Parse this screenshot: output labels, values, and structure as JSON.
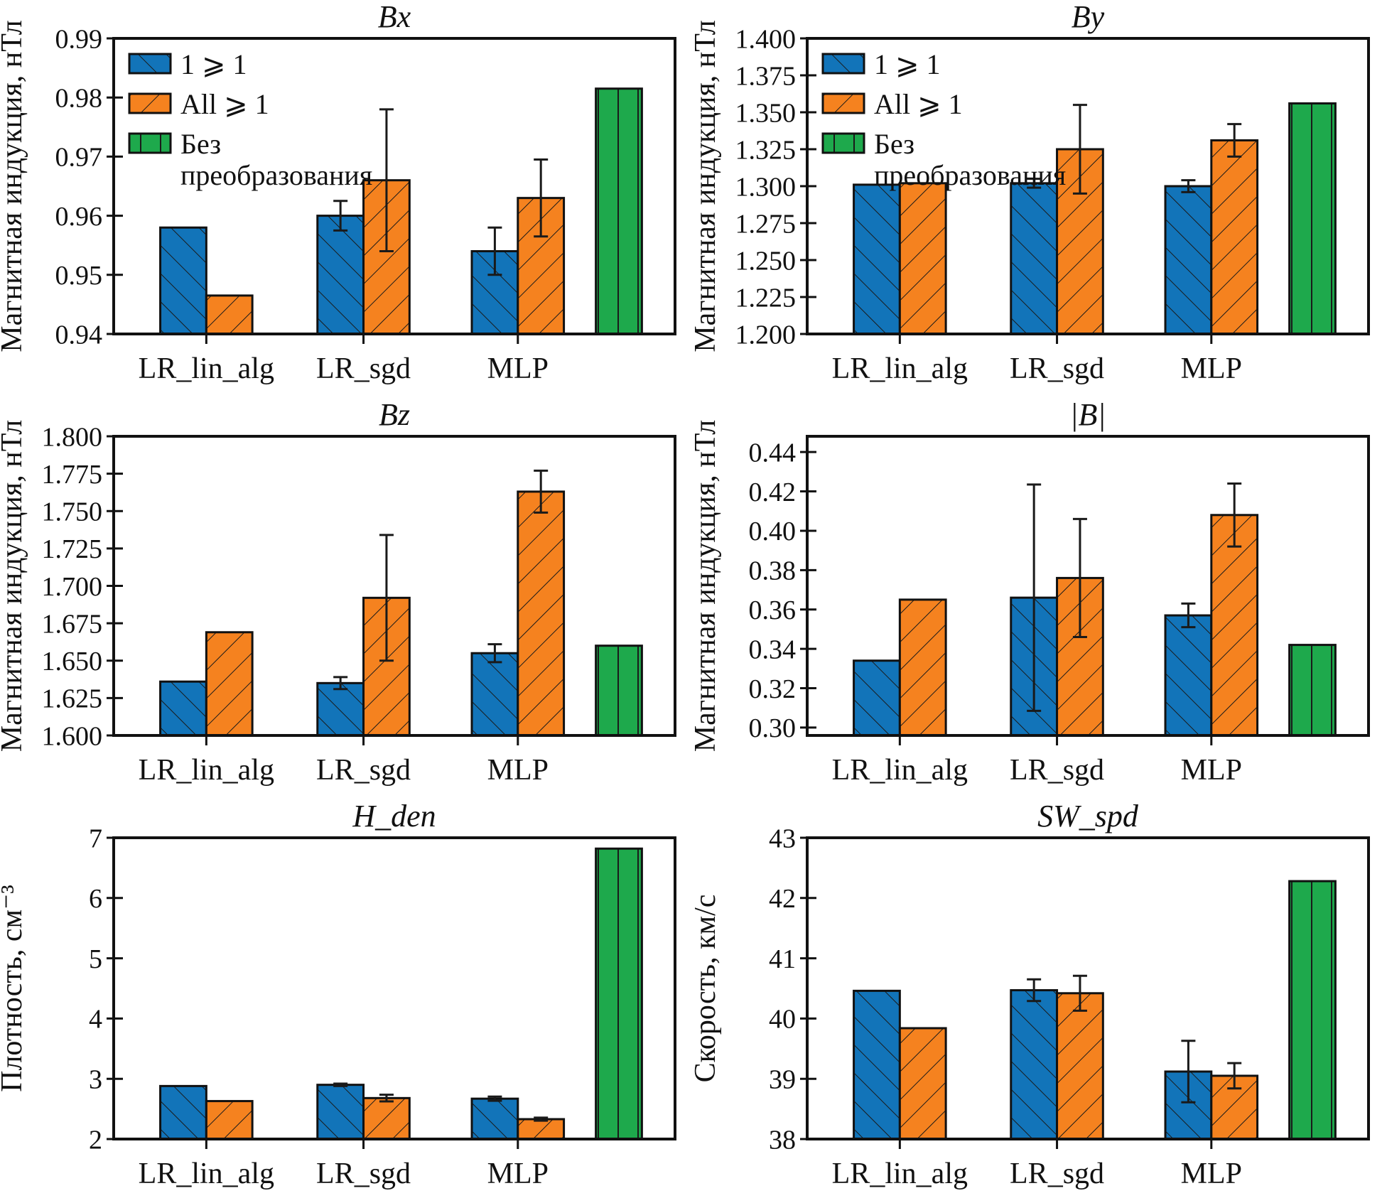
{
  "figure": {
    "background": "#ffffff",
    "colors": {
      "blue": "#1274b9",
      "orange": "#f5821f",
      "green": "#1ea94c",
      "edge": "#111111",
      "errorbar": "#1a1a1a"
    },
    "hatches": {
      "blue": "backslash",
      "orange": "slash",
      "green": "vertical"
    },
    "legend": {
      "items": [
        {
          "series": "one-ge-one",
          "color": "blue",
          "lines": [
            "1 ⩾ 1"
          ]
        },
        {
          "series": "all-ge-one",
          "color": "orange",
          "lines": [
            "All ⩾ 1"
          ]
        },
        {
          "series": "no-transform",
          "color": "green",
          "lines": [
            "Без",
            "преобразования"
          ]
        }
      ]
    },
    "categories": [
      "LR_lin_alg",
      "LR_sgd",
      "MLP"
    ]
  },
  "chart_data": [
    {
      "type": "bar",
      "title": "Bx",
      "ylabel": "Магнитная индукция, нТл",
      "ylim": [
        0.94,
        0.99
      ],
      "ytick_start": 0.94,
      "ytick_step": 0.01,
      "ydecimals": 2,
      "legend": true,
      "grid": false,
      "legend_position": "upper-left",
      "categories": [
        "LR_lin_alg",
        "LR_sgd",
        "MLP"
      ],
      "series": [
        {
          "name": "1 ⩾ 1",
          "color": "blue",
          "values": [
            0.958,
            0.96,
            0.954
          ],
          "errors": [
            null,
            0.0025,
            0.004
          ]
        },
        {
          "name": "All ⩾ 1",
          "color": "orange",
          "values": [
            0.9465,
            0.966,
            0.963
          ],
          "errors": [
            null,
            0.012,
            0.0065
          ]
        },
        {
          "name": "Без преобразования",
          "color": "green",
          "values": [
            0.9815
          ],
          "errors": [
            null
          ]
        }
      ]
    },
    {
      "type": "bar",
      "title": "By",
      "ylabel": "Магнитная индукция, нТл",
      "ylim": [
        1.2,
        1.4
      ],
      "ytick_start": 1.2,
      "ytick_step": 0.025,
      "ydecimals": 3,
      "legend": true,
      "grid": false,
      "legend_position": "upper-left",
      "categories": [
        "LR_lin_alg",
        "LR_sgd",
        "MLP"
      ],
      "series": [
        {
          "name": "1 ⩾ 1",
          "color": "blue",
          "values": [
            1.301,
            1.302,
            1.3
          ],
          "errors": [
            null,
            0.003,
            0.004
          ]
        },
        {
          "name": "All ⩾ 1",
          "color": "orange",
          "values": [
            1.302,
            1.325,
            1.331
          ],
          "errors": [
            null,
            0.03,
            0.011
          ]
        },
        {
          "name": "Без преобразования",
          "color": "green",
          "values": [
            1.356
          ],
          "errors": [
            null
          ]
        }
      ]
    },
    {
      "type": "bar",
      "title": "Bz",
      "ylabel": "Магнитная индукция, нТл",
      "ylim": [
        1.6,
        1.8
      ],
      "ytick_start": 1.6,
      "ytick_step": 0.025,
      "ydecimals": 3,
      "legend": false,
      "grid": false,
      "categories": [
        "LR_lin_alg",
        "LR_sgd",
        "MLP"
      ],
      "series": [
        {
          "name": "1 ⩾ 1",
          "color": "blue",
          "values": [
            1.636,
            1.635,
            1.655
          ],
          "errors": [
            null,
            0.004,
            0.006
          ]
        },
        {
          "name": "All ⩾ 1",
          "color": "orange",
          "values": [
            1.669,
            1.692,
            1.763
          ],
          "errors": [
            null,
            0.042,
            0.014
          ]
        },
        {
          "name": "Без преобразования",
          "color": "green",
          "values": [
            1.66
          ],
          "errors": [
            null
          ]
        }
      ]
    },
    {
      "type": "bar",
      "title": "|B|",
      "ylabel": "Магнитная индукция, нТл",
      "ylim": [
        0.296,
        0.448
      ],
      "ytick_start": 0.3,
      "ytick_step": 0.02,
      "ydecimals": 2,
      "legend": false,
      "grid": false,
      "categories": [
        "LR_lin_alg",
        "LR_sgd",
        "MLP"
      ],
      "series": [
        {
          "name": "1 ⩾ 1",
          "color": "blue",
          "values": [
            0.334,
            0.366,
            0.357
          ],
          "errors": [
            null,
            0.0575,
            0.006
          ]
        },
        {
          "name": "All ⩾ 1",
          "color": "orange",
          "values": [
            0.365,
            0.376,
            0.408
          ],
          "errors": [
            null,
            0.03,
            0.016
          ]
        },
        {
          "name": "Без преобразования",
          "color": "green",
          "values": [
            0.342
          ],
          "errors": [
            null
          ]
        }
      ]
    },
    {
      "type": "bar",
      "title": "H_den",
      "ylabel": "Плотность, см⁻³",
      "ylim": [
        2,
        7
      ],
      "ytick_start": 2,
      "ytick_step": 1,
      "ydecimals": 0,
      "legend": false,
      "grid": false,
      "categories": [
        "LR_lin_alg",
        "LR_sgd",
        "MLP"
      ],
      "series": [
        {
          "name": "1 ⩾ 1",
          "color": "blue",
          "values": [
            2.88,
            2.9,
            2.67
          ],
          "errors": [
            null,
            0.02,
            0.035
          ]
        },
        {
          "name": "All ⩾ 1",
          "color": "orange",
          "values": [
            2.63,
            2.68,
            2.33
          ],
          "errors": [
            null,
            0.055,
            0.025
          ]
        },
        {
          "name": "Без преобразования",
          "color": "green",
          "values": [
            6.82
          ],
          "errors": [
            null
          ]
        }
      ]
    },
    {
      "type": "bar",
      "title": "SW_spd",
      "ylabel": "Скорость, км/с",
      "ylim": [
        38,
        43
      ],
      "ytick_start": 38,
      "ytick_step": 1,
      "ydecimals": 0,
      "legend": false,
      "grid": false,
      "categories": [
        "LR_lin_alg",
        "LR_sgd",
        "MLP"
      ],
      "series": [
        {
          "name": "1 ⩾ 1",
          "color": "blue",
          "values": [
            40.46,
            40.47,
            39.12
          ],
          "errors": [
            null,
            0.18,
            0.51
          ]
        },
        {
          "name": "All ⩾ 1",
          "color": "orange",
          "values": [
            39.84,
            40.42,
            39.05
          ],
          "errors": [
            null,
            0.29,
            0.21
          ]
        },
        {
          "name": "Без преобразования",
          "color": "green",
          "values": [
            42.28
          ],
          "errors": [
            null
          ]
        }
      ]
    }
  ]
}
